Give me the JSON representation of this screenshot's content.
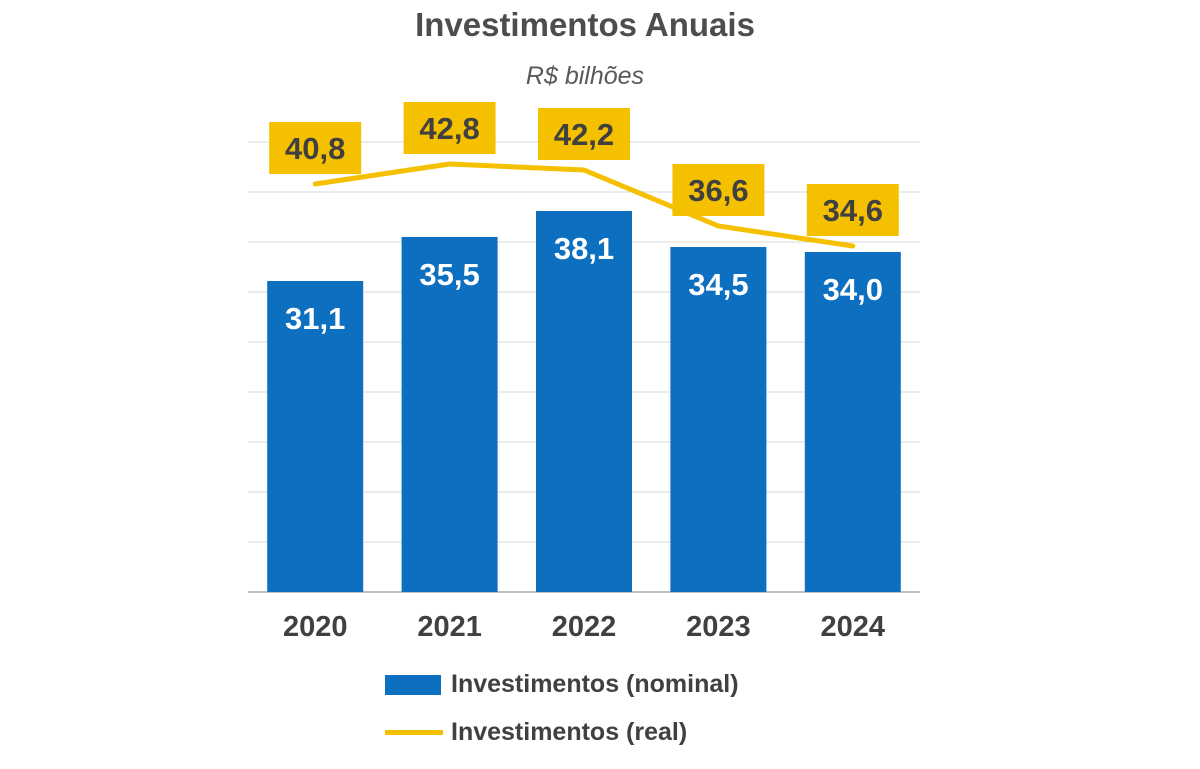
{
  "colors": {
    "bar": "#0c6fc0",
    "line": "#f5c000",
    "label_box": "#f5c000",
    "grid": "#d9d9d9"
  },
  "chart_data": {
    "type": "bar",
    "title": "Investimentos Anuais",
    "subtitle": "R$ bilhões",
    "categories": [
      "2020",
      "2021",
      "2022",
      "2023",
      "2024"
    ],
    "ylim": [
      0,
      45
    ],
    "grid": true,
    "legend_position": "bottom",
    "series": [
      {
        "name": "Investimentos (nominal)",
        "kind": "bar",
        "values": [
          31.1,
          35.5,
          38.1,
          34.5,
          34.0
        ],
        "labels": [
          "31,1",
          "35,5",
          "38,1",
          "34,5",
          "34,0"
        ]
      },
      {
        "name": "Investimentos (real)",
        "kind": "line",
        "values": [
          40.8,
          42.8,
          42.2,
          36.6,
          34.6
        ],
        "labels": [
          "40,8",
          "42,8",
          "42,2",
          "36,6",
          "34,6"
        ]
      }
    ]
  }
}
